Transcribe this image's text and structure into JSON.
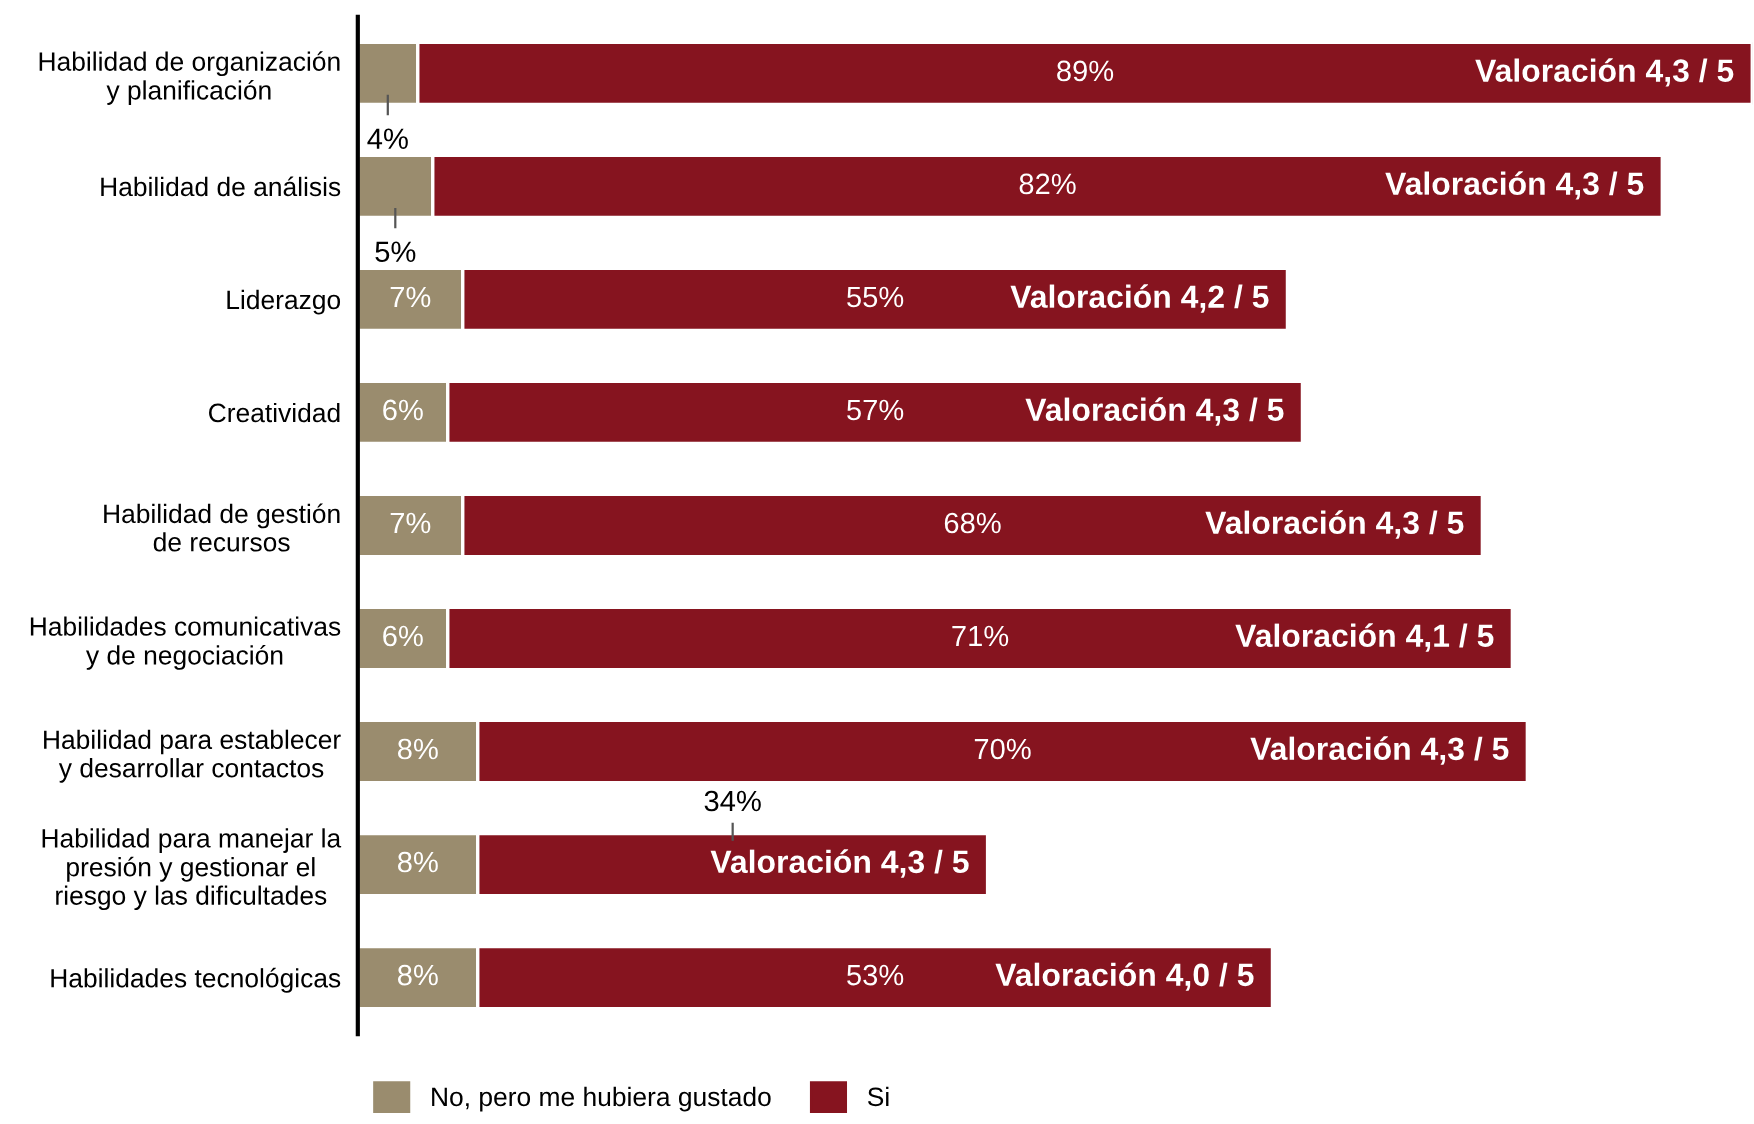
{
  "chart_data": {
    "type": "bar",
    "orientation": "horizontal",
    "stacked": true,
    "grid": false,
    "legend": "bottom",
    "categories": [
      "Habilidad de organización\ny planificación",
      "Habilidad de análisis",
      "Liderazgo",
      "Creatividad",
      "Habilidad de gestión\nde recursos",
      "Habilidades comunicativas\ny de negociación",
      "Habilidad para establecer\ny desarrollar contactos",
      "Habilidad para manejar la\npresión y gestionar el\nriesgo y las dificultades",
      "Habilidades tecnológicas"
    ],
    "series": [
      {
        "name": "No, pero me hubiera gustado",
        "color": "#9a8c6e",
        "values": [
          4,
          5,
          7,
          6,
          7,
          6,
          8,
          8,
          8
        ],
        "value_labels": [
          "4%",
          "5%",
          "7%",
          "6%",
          "7%",
          "6%",
          "8%",
          "8%",
          "8%"
        ]
      },
      {
        "name": "Si",
        "color": "#86141f",
        "values": [
          89,
          82,
          55,
          57,
          68,
          71,
          70,
          34,
          53
        ],
        "value_labels": [
          "89%",
          "82%",
          "55%",
          "57%",
          "68%",
          "71%",
          "70%",
          "34%",
          "53%"
        ]
      }
    ],
    "annotations": [
      {
        "text": "Valoración 4,3 / 5",
        "x": 93,
        "y": "Habilidad de organización\ny planificación"
      },
      {
        "text": "Valoración 4,3 / 5",
        "x": 87,
        "y": "Habilidad de análisis"
      },
      {
        "text": "Valoración 4,2 / 5",
        "x": 62,
        "y": "Liderazgo"
      },
      {
        "text": "Valoración 4,3 / 5",
        "x": 63,
        "y": "Creatividad"
      },
      {
        "text": "Valoración 4,3 / 5",
        "x": 75,
        "y": "Habilidad de gestión\nde recursos"
      },
      {
        "text": "Valoración 4,1 / 5",
        "x": 77,
        "y": "Habilidades comunicativas\ny de negociación"
      },
      {
        "text": "Valoración 4,3 / 5",
        "x": 78,
        "y": "Habilidad para establecer\ny desarrollar contactos"
      },
      {
        "text": "Valoración 4,3 / 5",
        "x": 42,
        "y": "Habilidad para manejar la\npresión y gestionar el\nriesgo y las dificultades"
      },
      {
        "text": "Valoración 4,0 / 5",
        "x": 61,
        "y": "Habilidades tecnológicas"
      }
    ]
  }
}
